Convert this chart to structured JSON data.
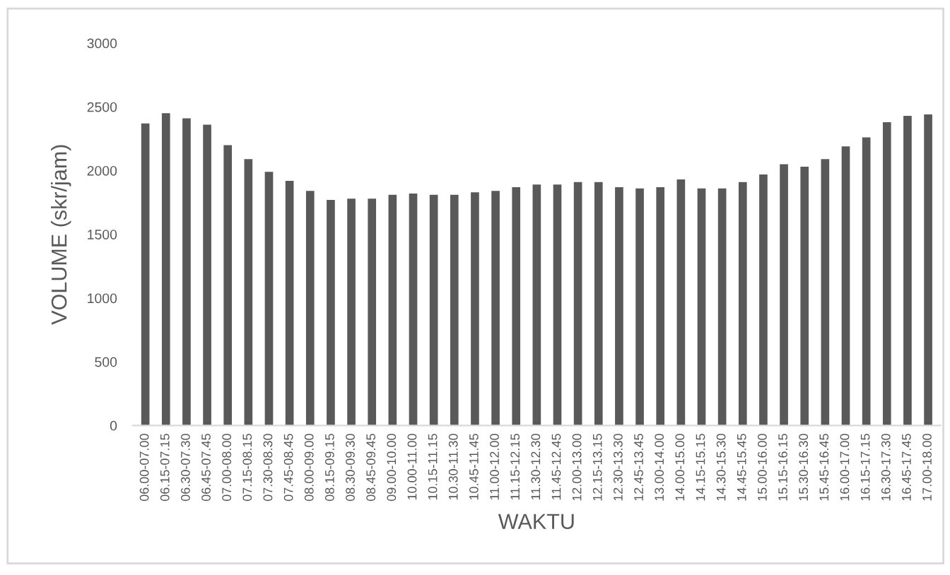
{
  "chart_data": {
    "type": "bar",
    "xlabel": "WAKTU",
    "ylabel": "VOLUME (skr/jam)",
    "categories": [
      "06.00-07.00",
      "06.15-07.15",
      "06.30-07.30",
      "06.45-07.45",
      "07.00-08.00",
      "07.15-08.15",
      "07.30-08.30",
      "07.45-08.45",
      "08.00-09.00",
      "08.15-09.15",
      "08.30-09.30",
      "08.45-09.45",
      "09.00-10.00",
      "10.00-11.00",
      "10.15-11.15",
      "10.30-11.30",
      "10.45-11.45",
      "11.00-12.00",
      "11.15-12.15",
      "11.30-12.30",
      "11.45-12.45",
      "12.00-13.00",
      "12.15-13.15",
      "12.30-13.30",
      "12.45-13.45",
      "13.00-14.00",
      "14.00-15.00",
      "14.15-15.15",
      "14.30-15.30",
      "14.45-15.45",
      "15.00-16.00",
      "15.15-16.15",
      "15.30-16.30",
      "15.45-16.45",
      "16.00-17.00",
      "16.15-17.15",
      "16.30-17.30",
      "16.45-17.45",
      "17.00-18.00"
    ],
    "values": [
      2370,
      2450,
      2410,
      2360,
      2200,
      2090,
      1990,
      1920,
      1840,
      1770,
      1780,
      1780,
      1810,
      1820,
      1810,
      1810,
      1830,
      1840,
      1870,
      1890,
      1890,
      1910,
      1910,
      1870,
      1860,
      1870,
      1930,
      1860,
      1860,
      1910,
      1970,
      2050,
      2030,
      2090,
      2190,
      2260,
      2380,
      2430,
      2440
    ],
    "color": "#595959",
    "ylim": [
      0,
      3000
    ],
    "yticks": [
      0,
      500,
      1000,
      1500,
      2000,
      2500,
      3000
    ],
    "grid": false,
    "legend": false
  }
}
